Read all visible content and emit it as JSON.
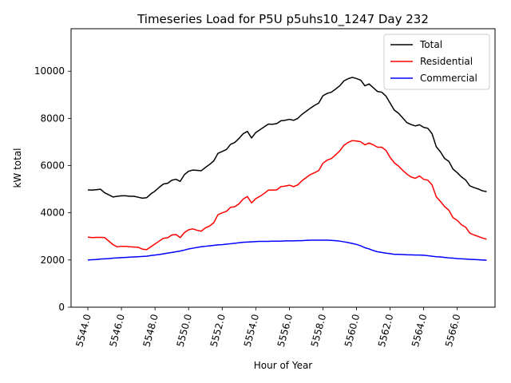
{
  "chart_data": {
    "type": "line",
    "title": "Timeseries Load for P5U p5uhs10_1247  Day 232",
    "xlabel": "Hour of Year",
    "ylabel": "kW total",
    "xlim": [
      5543.0,
      5568.25
    ],
    "ylim": [
      0,
      11800
    ],
    "xticks": [
      5544,
      5546,
      5548,
      5550,
      5552,
      5554,
      5556,
      5558,
      5560,
      5562,
      5564,
      5566
    ],
    "xtick_labels": [
      "5544.0",
      "5546.0",
      "5548.0",
      "5550.0",
      "5552.0",
      "5554.0",
      "5556.0",
      "5558.0",
      "5560.0",
      "5562.0",
      "5564.0",
      "5566.0"
    ],
    "yticks": [
      0,
      2000,
      4000,
      6000,
      8000,
      10000
    ],
    "ytick_labels": [
      "0",
      "2000",
      "4000",
      "6000",
      "8000",
      "10000"
    ],
    "legend_position": "top-right",
    "grid": false,
    "x": [
      5544.0,
      5544.25,
      5544.5,
      5544.75,
      5545.0,
      5545.25,
      5545.5,
      5545.75,
      5546.0,
      5546.25,
      5546.5,
      5546.75,
      5547.0,
      5547.25,
      5547.5,
      5547.75,
      5548.0,
      5548.25,
      5548.5,
      5548.75,
      5549.0,
      5549.25,
      5549.5,
      5549.75,
      5550.0,
      5550.25,
      5550.5,
      5550.75,
      5551.0,
      5551.25,
      5551.5,
      5551.75,
      5552.0,
      5552.25,
      5552.5,
      5552.75,
      5553.0,
      5553.25,
      5553.5,
      5553.75,
      5554.0,
      5554.25,
      5554.5,
      5554.75,
      5555.0,
      5555.25,
      5555.5,
      5555.75,
      5556.0,
      5556.25,
      5556.5,
      5556.75,
      5557.0,
      5557.25,
      5557.5,
      5557.75,
      5558.0,
      5558.25,
      5558.5,
      5558.75,
      5559.0,
      5559.25,
      5559.5,
      5559.75,
      5560.0,
      5560.25,
      5560.5,
      5560.75,
      5561.0,
      5561.25,
      5561.5,
      5561.75,
      5562.0,
      5562.25,
      5562.5,
      5562.75,
      5563.0,
      5563.25,
      5563.5,
      5563.75,
      5564.0,
      5564.25,
      5564.5,
      5564.75,
      5565.0,
      5565.25,
      5565.5,
      5565.75,
      5566.0,
      5566.25,
      5566.5,
      5566.75,
      5567.0,
      5567.25,
      5567.5,
      5567.75
    ],
    "series": [
      {
        "name": "Total",
        "color": "#000000",
        "values": [
          4970,
          4960,
          4980,
          5000,
          4850,
          4760,
          4670,
          4700,
          4720,
          4720,
          4700,
          4700,
          4660,
          4620,
          4640,
          4800,
          4920,
          5080,
          5220,
          5250,
          5380,
          5420,
          5330,
          5620,
          5760,
          5810,
          5800,
          5780,
          5920,
          6050,
          6200,
          6520,
          6600,
          6680,
          6900,
          6980,
          7150,
          7350,
          7450,
          7170,
          7400,
          7520,
          7640,
          7760,
          7750,
          7780,
          7900,
          7920,
          7960,
          7920,
          8000,
          8170,
          8300,
          8430,
          8550,
          8650,
          8960,
          9060,
          9110,
          9240,
          9380,
          9590,
          9680,
          9740,
          9690,
          9620,
          9380,
          9460,
          9300,
          9140,
          9110,
          8950,
          8650,
          8350,
          8220,
          8020,
          7820,
          7740,
          7680,
          7730,
          7620,
          7580,
          7350,
          6800,
          6580,
          6300,
          6180,
          5850,
          5700,
          5520,
          5390,
          5140,
          5070,
          5010,
          4930,
          4900
        ]
      },
      {
        "name": "Residential",
        "color": "#ff0000",
        "values": [
          2970,
          2950,
          2960,
          2960,
          2950,
          2800,
          2650,
          2560,
          2580,
          2580,
          2560,
          2550,
          2540,
          2460,
          2440,
          2560,
          2680,
          2800,
          2920,
          2940,
          3060,
          3080,
          2950,
          3160,
          3280,
          3320,
          3260,
          3220,
          3360,
          3440,
          3580,
          3920,
          4000,
          4060,
          4230,
          4260,
          4380,
          4580,
          4690,
          4420,
          4600,
          4700,
          4820,
          4960,
          4960,
          4970,
          5110,
          5130,
          5170,
          5110,
          5180,
          5360,
          5490,
          5620,
          5700,
          5790,
          6100,
          6230,
          6300,
          6450,
          6620,
          6860,
          6980,
          7060,
          7040,
          7010,
          6880,
          6960,
          6880,
          6780,
          6780,
          6650,
          6350,
          6120,
          5980,
          5800,
          5640,
          5520,
          5460,
          5560,
          5420,
          5380,
          5180,
          4680,
          4480,
          4260,
          4110,
          3790,
          3680,
          3490,
          3390,
          3140,
          3060,
          3000,
          2930,
          2880
        ]
      },
      {
        "name": "Commercial",
        "color": "#0000ff",
        "values": [
          2000,
          2010,
          2020,
          2040,
          2050,
          2060,
          2080,
          2090,
          2100,
          2110,
          2120,
          2130,
          2140,
          2150,
          2160,
          2190,
          2210,
          2230,
          2260,
          2290,
          2320,
          2350,
          2380,
          2420,
          2470,
          2500,
          2530,
          2560,
          2580,
          2600,
          2620,
          2640,
          2650,
          2670,
          2690,
          2710,
          2730,
          2750,
          2760,
          2770,
          2780,
          2790,
          2790,
          2790,
          2800,
          2800,
          2800,
          2810,
          2810,
          2810,
          2820,
          2820,
          2830,
          2840,
          2840,
          2840,
          2840,
          2840,
          2830,
          2820,
          2800,
          2770,
          2740,
          2700,
          2660,
          2600,
          2520,
          2470,
          2400,
          2350,
          2320,
          2290,
          2270,
          2240,
          2240,
          2230,
          2220,
          2220,
          2210,
          2210,
          2200,
          2180,
          2160,
          2140,
          2130,
          2110,
          2090,
          2080,
          2060,
          2050,
          2040,
          2030,
          2020,
          2010,
          2000,
          1990
        ]
      }
    ]
  }
}
